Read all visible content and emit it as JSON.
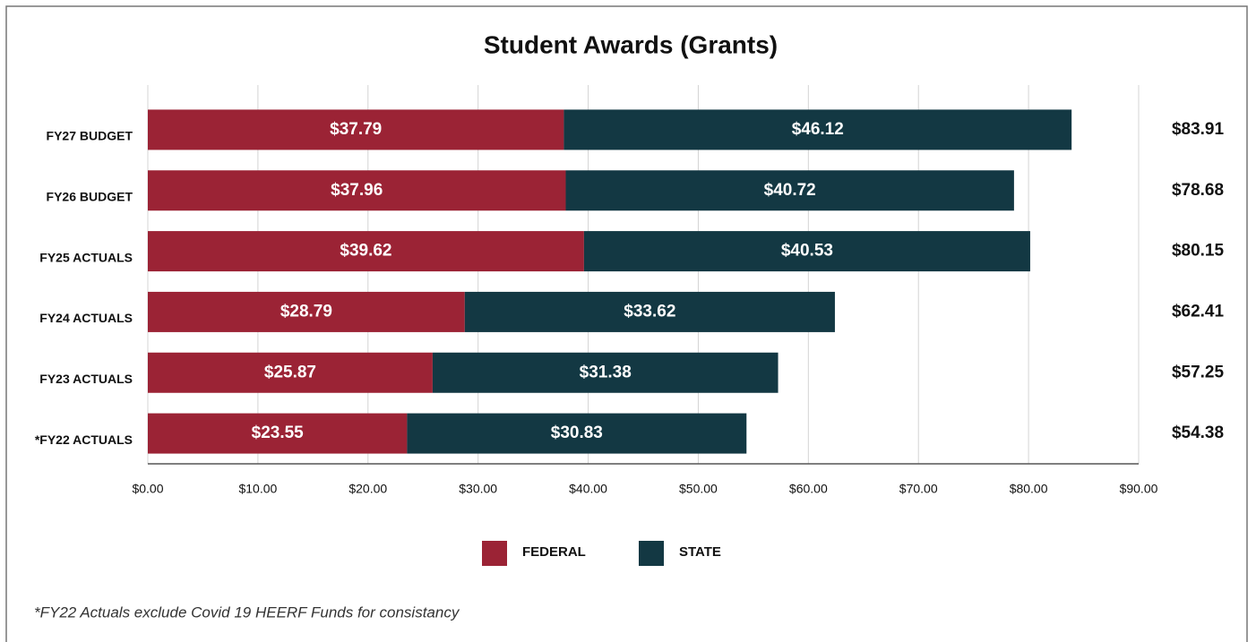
{
  "chart_data": {
    "type": "stacked_barh",
    "title": "Student Awards (Grants)",
    "categories": [
      "FY27 BUDGET",
      "FY26 BUDGET",
      "FY25 ACTUALS",
      "FY24 ACTUALS",
      "FY23 ACTUALS",
      "*FY22 ACTUALS"
    ],
    "series": [
      {
        "name": "FEDERAL",
        "color": "#9b2335",
        "values": [
          37.79,
          37.96,
          39.62,
          28.79,
          25.87,
          23.55
        ],
        "value_labels": [
          "$37.79",
          "$37.96",
          "$39.62",
          "$28.79",
          "$25.87",
          "$23.55"
        ]
      },
      {
        "name": "STATE",
        "color": "#133843",
        "values": [
          46.12,
          40.72,
          40.53,
          33.62,
          31.38,
          30.83
        ],
        "value_labels": [
          "$46.12",
          "$40.72",
          "$40.53",
          "$33.62",
          "$31.38",
          "$30.83"
        ]
      }
    ],
    "totals": [
      83.91,
      78.68,
      80.15,
      62.41,
      57.25,
      54.38
    ],
    "total_labels": [
      "$83.91",
      "$78.68",
      "$80.15",
      "$62.41",
      "$57.25",
      "$54.38"
    ],
    "xlim": [
      0,
      90
    ],
    "xticks": [
      {
        "value": 0,
        "label": "$0.00"
      },
      {
        "value": 10,
        "label": "$10.00"
      },
      {
        "value": 20,
        "label": "$20.00"
      },
      {
        "value": 30,
        "label": "$30.00"
      },
      {
        "value": 40,
        "label": "$40.00"
      },
      {
        "value": 50,
        "label": "$50.00"
      },
      {
        "value": 60,
        "label": "$60.00"
      },
      {
        "value": 70,
        "label": "$70.00"
      },
      {
        "value": 80,
        "label": "$80.00"
      },
      {
        "value": 90,
        "label": "$90.00"
      }
    ],
    "grid": true,
    "legend": "bottom",
    "footnote": "*FY22 Actuals exclude Covid 19 HEERF Funds for consistancy"
  }
}
